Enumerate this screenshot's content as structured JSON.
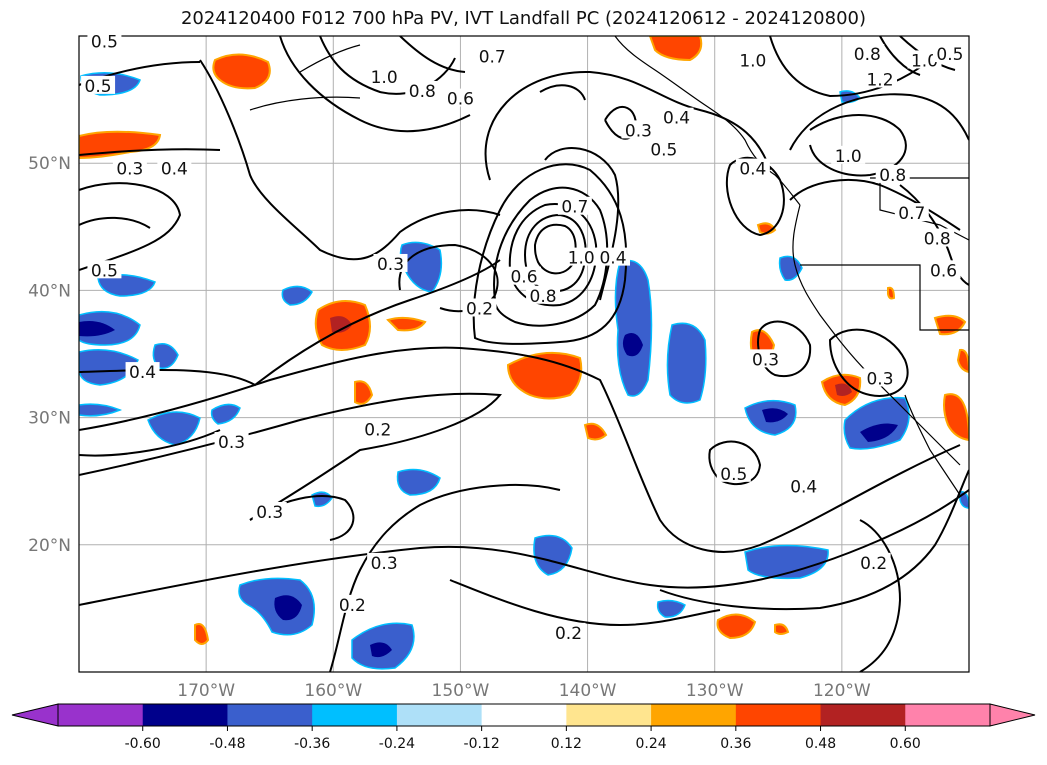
{
  "title": "2024120400 F012 700 hPa PV, IVT Landfall PC (2024120612 - 2024120800)",
  "map": {
    "projection": "PlateCarree",
    "lon_range": [
      -180,
      -110
    ],
    "lat_range": [
      10,
      60
    ],
    "gridlines": true,
    "lat_ticks": [
      {
        "lat": 50,
        "label": "50°N"
      },
      {
        "lat": 40,
        "label": "40°N"
      },
      {
        "lat": 30,
        "label": "30°N"
      },
      {
        "lat": 20,
        "label": "20°N"
      }
    ],
    "lon_ticks": [
      {
        "lon": -170,
        "label": "170°W"
      },
      {
        "lon": -160,
        "label": "160°W"
      },
      {
        "lon": -150,
        "label": "150°W"
      },
      {
        "lon": -140,
        "label": "140°W"
      },
      {
        "lon": -130,
        "label": "130°W"
      },
      {
        "lon": -120,
        "label": "120°W"
      }
    ],
    "contour_labels": [
      {
        "text": "0.5",
        "lon": -178,
        "lat": 59.5
      },
      {
        "text": "0.5",
        "lon": -178.5,
        "lat": 56
      },
      {
        "text": "1.0",
        "lon": -156,
        "lat": 56.7
      },
      {
        "text": "0.8",
        "lon": -153,
        "lat": 55.6
      },
      {
        "text": "0.6",
        "lon": -150,
        "lat": 55
      },
      {
        "text": "0.7",
        "lon": -147.5,
        "lat": 58.3
      },
      {
        "text": "0.3",
        "lon": -176,
        "lat": 49.5
      },
      {
        "text": "0.4",
        "lon": -172.5,
        "lat": 49.5
      },
      {
        "text": "0.3",
        "lon": -136,
        "lat": 52.5
      },
      {
        "text": "0.5",
        "lon": -134,
        "lat": 51
      },
      {
        "text": "0.4",
        "lon": -133,
        "lat": 53.5
      },
      {
        "text": "0.4",
        "lon": -127,
        "lat": 49.5
      },
      {
        "text": "1.0",
        "lon": -127,
        "lat": 58
      },
      {
        "text": "1.2",
        "lon": -117,
        "lat": 56.5
      },
      {
        "text": "1.0",
        "lon": -113.5,
        "lat": 58
      },
      {
        "text": "1.0",
        "lon": -119.5,
        "lat": 50.5
      },
      {
        "text": "0.8",
        "lon": -118,
        "lat": 58.5
      },
      {
        "text": "0.8",
        "lon": -116,
        "lat": 49
      },
      {
        "text": "0.7",
        "lon": -114.5,
        "lat": 46
      },
      {
        "text": "0.8",
        "lon": -112.5,
        "lat": 44
      },
      {
        "text": "0.6",
        "lon": -112,
        "lat": 41.5
      },
      {
        "text": "0.5",
        "lon": -111.5,
        "lat": 58.5
      },
      {
        "text": "0.7",
        "lon": -141,
        "lat": 46.5
      },
      {
        "text": "1.0",
        "lon": -140.5,
        "lat": 42.5
      },
      {
        "text": "0.6",
        "lon": -145,
        "lat": 41
      },
      {
        "text": "0.8",
        "lon": -143.5,
        "lat": 39.5
      },
      {
        "text": "0.4",
        "lon": -138,
        "lat": 42.5
      },
      {
        "text": "0.5",
        "lon": -178,
        "lat": 41.5
      },
      {
        "text": "0.3",
        "lon": -155.5,
        "lat": 42
      },
      {
        "text": "0.2",
        "lon": -148.5,
        "lat": 38.5
      },
      {
        "text": "0.4",
        "lon": -175,
        "lat": 33.5
      },
      {
        "text": "0.3",
        "lon": -126,
        "lat": 34.5
      },
      {
        "text": "0.3",
        "lon": -117,
        "lat": 33
      },
      {
        "text": "0.3",
        "lon": -168,
        "lat": 28
      },
      {
        "text": "0.2",
        "lon": -156.5,
        "lat": 29
      },
      {
        "text": "0.5",
        "lon": -128.5,
        "lat": 25.5
      },
      {
        "text": "0.4",
        "lon": -123,
        "lat": 24.5
      },
      {
        "text": "0.3",
        "lon": -165,
        "lat": 22.5
      },
      {
        "text": "0.3",
        "lon": -156,
        "lat": 18.5
      },
      {
        "text": "0.2",
        "lon": -158.5,
        "lat": 15.2
      },
      {
        "text": "0.2",
        "lon": -117.5,
        "lat": 18.5
      },
      {
        "text": "0.2",
        "lon": -141.5,
        "lat": 13
      }
    ]
  },
  "colorbar": {
    "ticks": [
      "-0.60",
      "-0.48",
      "-0.36",
      "-0.24",
      "-0.12",
      "0.12",
      "0.24",
      "0.36",
      "0.48",
      "0.60"
    ],
    "colors": [
      "#9932cc",
      "#00008b",
      "#3a5fcd",
      "#00bfff",
      "#aee0f8",
      "#ffffff",
      "#ffe58f",
      "#ffa500",
      "#ff4500",
      "#b22222",
      "#ff82ab"
    ],
    "extend": "both"
  }
}
